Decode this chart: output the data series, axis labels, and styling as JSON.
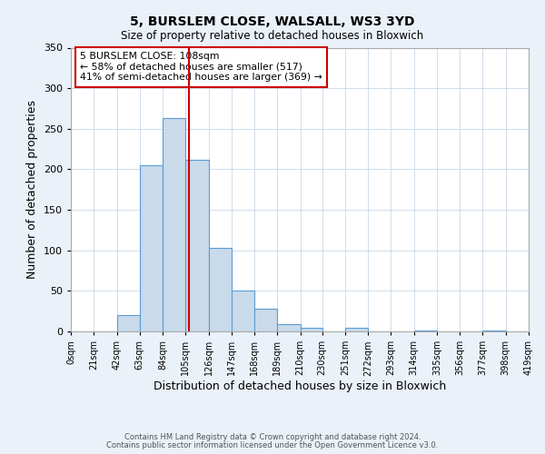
{
  "title1": "5, BURSLEM CLOSE, WALSALL, WS3 3YD",
  "title2": "Size of property relative to detached houses in Bloxwich",
  "xlabel": "Distribution of detached houses by size in Bloxwich",
  "ylabel": "Number of detached properties",
  "bin_edges": [
    0,
    21,
    42,
    63,
    84,
    105,
    126,
    147,
    168,
    189,
    210,
    230,
    251,
    272,
    293,
    314,
    335,
    356,
    377,
    398,
    419
  ],
  "bar_heights": [
    0,
    0,
    20,
    205,
    263,
    212,
    103,
    50,
    28,
    9,
    4,
    0,
    4,
    0,
    0,
    1,
    0,
    0,
    1,
    0
  ],
  "bar_color": "#c9daea",
  "bar_edge_color": "#5b9bd5",
  "vline_x": 108,
  "vline_color": "#cc0000",
  "ylim": [
    0,
    350
  ],
  "yticks": [
    0,
    50,
    100,
    150,
    200,
    250,
    300,
    350
  ],
  "x_tick_labels": [
    "0sqm",
    "21sqm",
    "42sqm",
    "63sqm",
    "84sqm",
    "105sqm",
    "126sqm",
    "147sqm",
    "168sqm",
    "189sqm",
    "210sqm",
    "230sqm",
    "251sqm",
    "272sqm",
    "293sqm",
    "314sqm",
    "335sqm",
    "356sqm",
    "377sqm",
    "398sqm",
    "419sqm"
  ],
  "annotation_title": "5 BURSLEM CLOSE: 108sqm",
  "annotation_line1": "← 58% of detached houses are smaller (517)",
  "annotation_line2": "41% of semi-detached houses are larger (369) →",
  "annotation_box_color": "#ffffff",
  "annotation_box_edge": "#cc0000",
  "footer1": "Contains HM Land Registry data © Crown copyright and database right 2024.",
  "footer2": "Contains public sector information licensed under the Open Government Licence v3.0.",
  "bg_color": "#eaf1f8",
  "plot_bg_color": "#ffffff",
  "grid_color": "#c8d8e8"
}
